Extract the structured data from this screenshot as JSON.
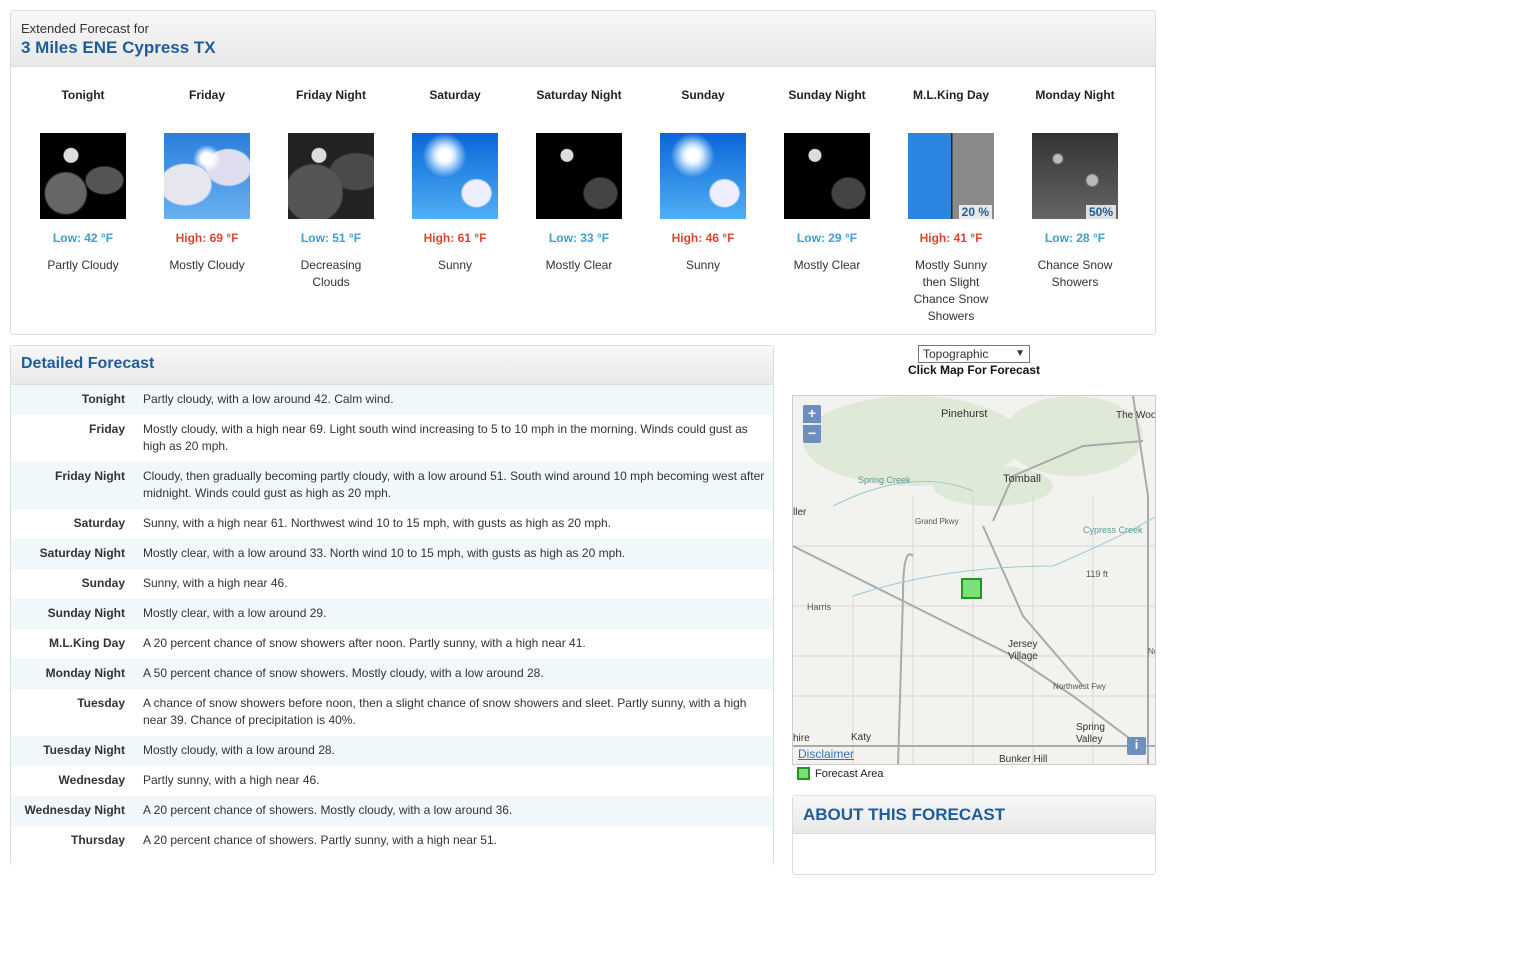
{
  "header": {
    "subtitle": "Extended Forecast for",
    "location": "3 Miles ENE Cypress TX"
  },
  "periods": [
    {
      "name": "Tonight",
      "temp": "Low: 42 °F",
      "type": "low",
      "desc": "Partly Cloudy",
      "icon": "night-partly-cloudy"
    },
    {
      "name": "Friday",
      "temp": "High: 69 °F",
      "type": "high",
      "desc": "Mostly Cloudy",
      "icon": "mostly-cloudy"
    },
    {
      "name": "Friday Night",
      "temp": "Low: 51 °F",
      "type": "low",
      "desc": "Decreasing Clouds",
      "icon": "night-cloudy"
    },
    {
      "name": "Saturday",
      "temp": "High: 61 °F",
      "type": "high",
      "desc": "Sunny",
      "icon": "sunny"
    },
    {
      "name": "Saturday Night",
      "temp": "Low: 33 °F",
      "type": "low",
      "desc": "Mostly Clear",
      "icon": "night-clear"
    },
    {
      "name": "Sunday",
      "temp": "High: 46 °F",
      "type": "high",
      "desc": "Sunny",
      "icon": "sunny"
    },
    {
      "name": "Sunday Night",
      "temp": "Low: 29 °F",
      "type": "low",
      "desc": "Mostly Clear",
      "icon": "night-clear"
    },
    {
      "name": "M.L.King Day",
      "temp": "High: 41 °F",
      "type": "high",
      "desc": "Mostly Sunny then Slight Chance Snow Showers",
      "icon": "sunny-then-snow",
      "pop": "20 %"
    },
    {
      "name": "Monday Night",
      "temp": "Low: 28 °F",
      "type": "low",
      "desc": "Chance Snow Showers",
      "icon": "snow",
      "pop": "50%"
    }
  ],
  "detailed": {
    "title": "Detailed Forecast",
    "rows": [
      {
        "label": "Tonight",
        "text": "Partly cloudy, with a low around 42. Calm wind."
      },
      {
        "label": "Friday",
        "text": "Mostly cloudy, with a high near 69. Light south wind increasing to 5 to 10 mph in the morning. Winds could gust as high as 20 mph."
      },
      {
        "label": "Friday Night",
        "text": "Cloudy, then gradually becoming partly cloudy, with a low around 51. South wind around 10 mph becoming west after midnight. Winds could gust as high as 20 mph."
      },
      {
        "label": "Saturday",
        "text": "Sunny, with a high near 61. Northwest wind 10 to 15 mph, with gusts as high as 20 mph."
      },
      {
        "label": "Saturday Night",
        "text": "Mostly clear, with a low around 33. North wind 10 to 15 mph, with gusts as high as 20 mph."
      },
      {
        "label": "Sunday",
        "text": "Sunny, with a high near 46."
      },
      {
        "label": "Sunday Night",
        "text": "Mostly clear, with a low around 29."
      },
      {
        "label": "M.L.King Day",
        "text": "A 20 percent chance of snow showers after noon. Partly sunny, with a high near 41."
      },
      {
        "label": "Monday Night",
        "text": "A 50 percent chance of snow showers. Mostly cloudy, with a low around 28."
      },
      {
        "label": "Tuesday",
        "text": "A chance of snow showers before noon, then a slight chance of snow showers and sleet. Partly sunny, with a high near 39. Chance of precipitation is 40%."
      },
      {
        "label": "Tuesday Night",
        "text": "Mostly cloudy, with a low around 28."
      },
      {
        "label": "Wednesday",
        "text": "Partly sunny, with a high near 46."
      },
      {
        "label": "Wednesday Night",
        "text": "A 20 percent chance of showers. Mostly cloudy, with a low around 36."
      },
      {
        "label": "Thursday",
        "text": "A 20 percent chance of showers. Partly sunny, with a high near 51."
      }
    ]
  },
  "map": {
    "layer_select": "Topographic",
    "instruction": "Click Map For Forecast",
    "zoom_in": "+",
    "zoom_out": "−",
    "disclaimer": "Disclaimer",
    "info": "i",
    "legend": "Forecast Area",
    "labels": [
      "Pinehurst",
      "Tomball",
      "Jersey Village",
      "Spring Valley",
      "Katy",
      "Bunker Hill",
      "The Woodla",
      "Spring Creek",
      "Harris",
      "Grand Pkwy",
      "Cypress Creek",
      "119 ft",
      "Northwest Fwy",
      "North Fwy",
      "ller",
      "hire"
    ]
  },
  "about": {
    "title": "ABOUT THIS FORECAST"
  },
  "colors": {
    "accent": "#1f5d9a",
    "low": "#3b9fd8",
    "high": "#e0432f"
  }
}
